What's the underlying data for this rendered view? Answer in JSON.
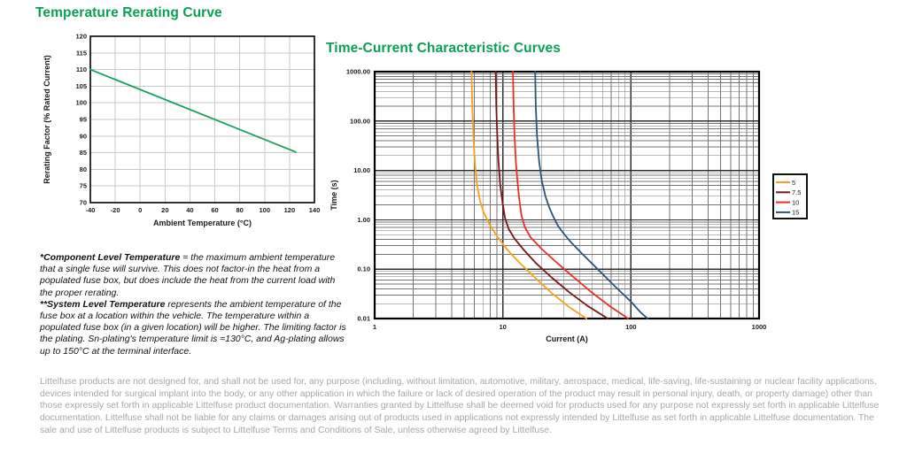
{
  "page": {
    "left_title": "Temperature Rerating Curve",
    "right_title": "Time-Current Characteristic Curves"
  },
  "chart_data": [
    {
      "type": "line",
      "title": "Temperature Rerating Curve",
      "xlabel": "Ambient Temperature (°C)",
      "ylabel": "Rerating Factor (% Rated Current)",
      "xscale": "linear",
      "yscale": "linear",
      "xlim": [
        -40,
        140
      ],
      "xtick_step": 20,
      "ylim": [
        70,
        120
      ],
      "ytick_step": 5,
      "grid": true,
      "legend": false,
      "series": [
        {
          "name": "rerating-factor",
          "color": "#17a15c",
          "points": [
            [
              -40,
              110
            ],
            [
              125,
              85.2
            ]
          ]
        }
      ]
    },
    {
      "type": "line",
      "title": "Time-Current Characteristic Curves",
      "xlabel": "Current (A)",
      "ylabel": "Time (s)",
      "xscale": "log",
      "yscale": "log",
      "xlim": [
        1,
        1000
      ],
      "ylim": [
        0.01,
        1000
      ],
      "xticks": [
        "1",
        "10",
        "100",
        "1000"
      ],
      "yticks": [
        "1000.00",
        "100.00",
        "10.00",
        "1.00",
        "0.10",
        "0.01"
      ],
      "grid": true,
      "legend": true,
      "legend_position": "right",
      "series": [
        {
          "name": "5",
          "color": "#f7a01d",
          "points": [
            [
              5.7,
              1000
            ],
            [
              5.78,
              200
            ],
            [
              5.9,
              50
            ],
            [
              6.05,
              15
            ],
            [
              6.3,
              5
            ],
            [
              6.65,
              2.4
            ],
            [
              7.1,
              1.4
            ],
            [
              7.9,
              0.8
            ],
            [
              9,
              0.47
            ],
            [
              10.8,
              0.25
            ],
            [
              13.5,
              0.135
            ],
            [
              18,
              0.066
            ],
            [
              24,
              0.033
            ],
            [
              33,
              0.017
            ],
            [
              45,
              0.01
            ]
          ]
        },
        {
          "name": "7.5",
          "color": "#7a1416",
          "points": [
            [
              8.8,
              1000
            ],
            [
              8.9,
              200
            ],
            [
              9.05,
              50
            ],
            [
              9.25,
              15
            ],
            [
              9.55,
              5
            ],
            [
              9.95,
              2.2
            ],
            [
              10.4,
              1.1
            ],
            [
              11.1,
              0.66
            ],
            [
              12.3,
              0.42
            ],
            [
              14.5,
              0.25
            ],
            [
              18,
              0.135
            ],
            [
              24,
              0.068
            ],
            [
              33,
              0.034
            ],
            [
              46,
              0.018
            ],
            [
              66,
              0.01
            ]
          ]
        },
        {
          "name": "10",
          "color": "#ee2c24",
          "points": [
            [
              12,
              1000
            ],
            [
              12.15,
              200
            ],
            [
              12.35,
              50
            ],
            [
              12.65,
              15
            ],
            [
              13.1,
              5
            ],
            [
              13.5,
              2.4
            ],
            [
              14,
              1.2
            ],
            [
              14.9,
              0.7
            ],
            [
              16.5,
              0.44
            ],
            [
              20,
              0.26
            ],
            [
              26,
              0.14
            ],
            [
              35,
              0.072
            ],
            [
              48,
              0.036
            ],
            [
              68,
              0.018
            ],
            [
              95,
              0.01
            ]
          ]
        },
        {
          "name": "15",
          "color": "#2a547c",
          "points": [
            [
              17.9,
              1000
            ],
            [
              18.1,
              200
            ],
            [
              18.5,
              50
            ],
            [
              19.2,
              15
            ],
            [
              20.2,
              6
            ],
            [
              21.5,
              3
            ],
            [
              23,
              1.8
            ],
            [
              24.8,
              1.15
            ],
            [
              27,
              0.75
            ],
            [
              29.5,
              0.55
            ],
            [
              34,
              0.35
            ],
            [
              42,
              0.2
            ],
            [
              55,
              0.1
            ],
            [
              75,
              0.045
            ],
            [
              100,
              0.022
            ],
            [
              120,
              0.013
            ],
            [
              135,
              0.01
            ]
          ]
        }
      ]
    }
  ],
  "notes": {
    "p1_lead": "*Component Level Temperature",
    "p1_text": " = the maximum ambient temperature that a single fuse will survive. This does not factor-in the heat from a populated fuse box, but does include the heat from the current load with the proper rerating.",
    "p2_lead": "**System Level Temperature",
    "p2_text": " represents the ambient temperature of the fuse box at a location within the vehicle. The temperature within a populated fuse box (in a given location) will be higher. The limiting factor is the plating. Sn-plating's temperature limit is ≈130°C, and Ag-plating allows up to 150°C at the terminal interface."
  },
  "disclaimer": "Littelfuse products are not designed for, and shall not be used for, any purpose (including, without limitation, automotive, military, aerospace, medical, life-saving, life-sustaining or nuclear facility applications, devices intended for surgical implant into the body, or any other application in which the failure or lack of desired operation of the product may result in personal injury, death, or property damage) other than those expressly set forth in applicable Littelfuse product documentation.  Warranties granted by Littelfuse shall be deemed void for products used for any purpose not expressly set forth in applicable Littelfuse documentation.  Littelfuse shall not be liable for any claims or damages arising out of products used in applications not expressly intended by Littelfuse as set forth in applicable Littelfuse documentation.  The sale and use of Littelfuse products is subject to Littelfuse Terms and Conditions of Sale, unless otherwise agreed by Littelfuse."
}
